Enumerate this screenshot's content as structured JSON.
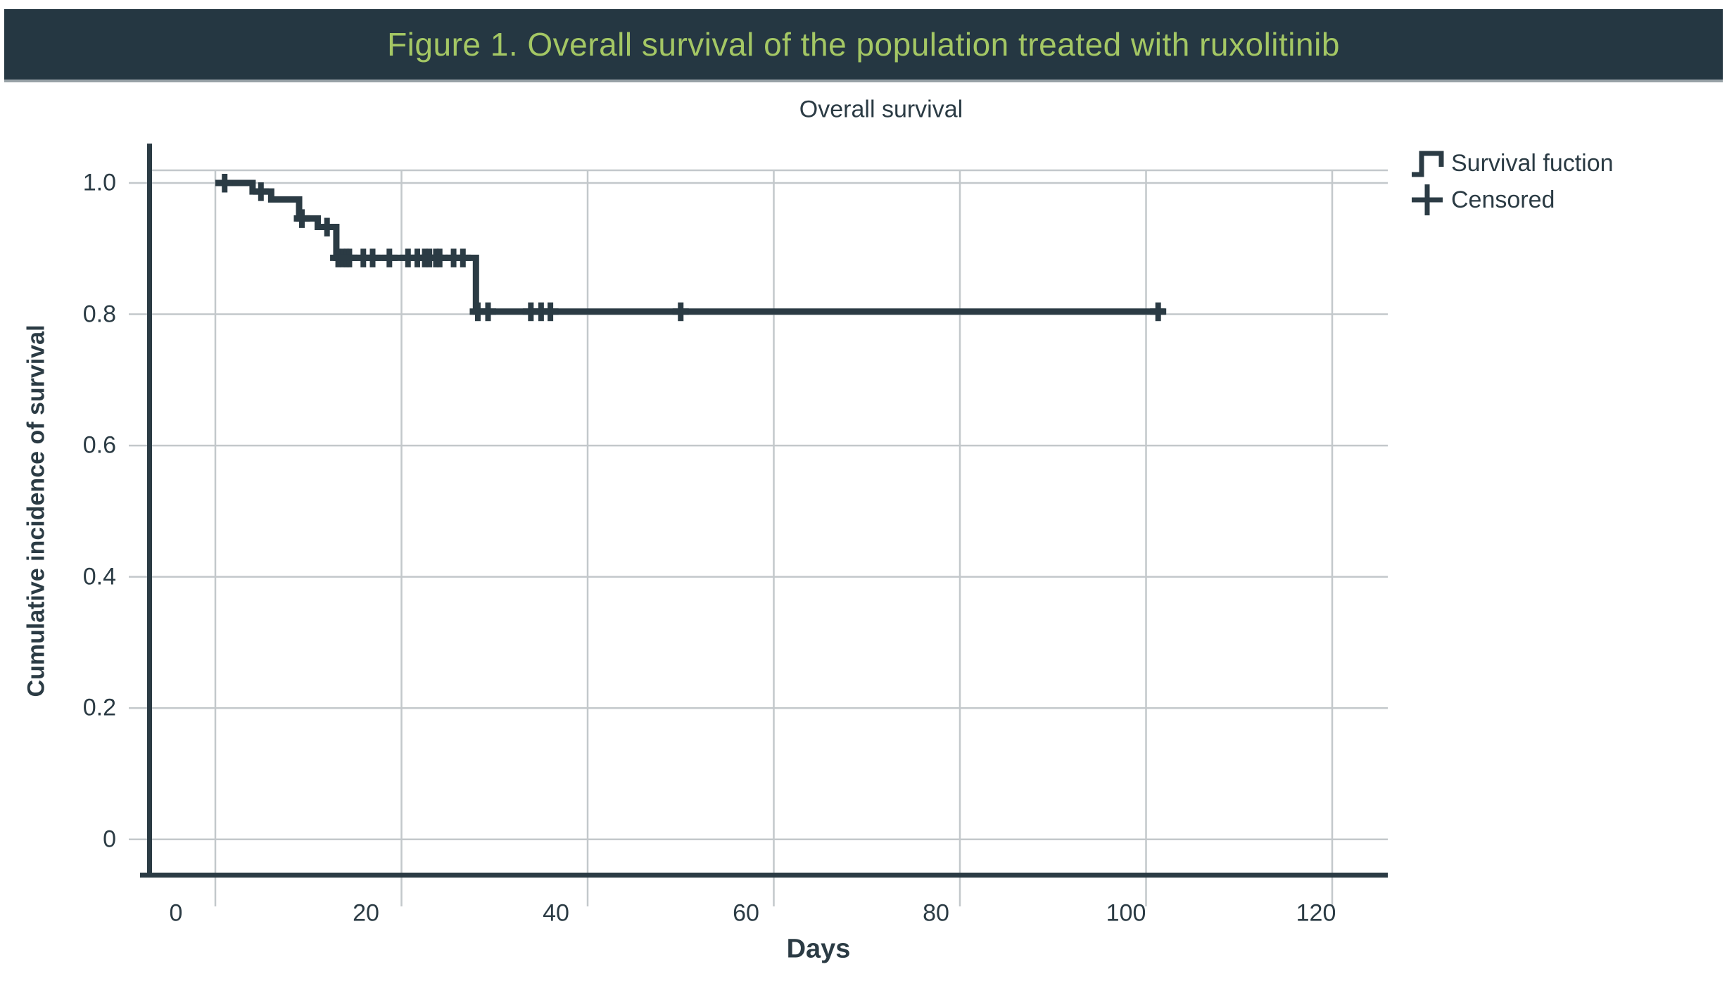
{
  "figure_header": {
    "title": "Figure 1. Overall survival of the population treated with ruxolitinib"
  },
  "chart_data": {
    "type": "line",
    "subtype": "kaplan-meier-step-function",
    "title": "Overall survival",
    "xlabel": "Days",
    "ylabel": "Cumulative incidence of survival",
    "x_ticks": [
      0,
      20,
      40,
      60,
      80,
      100,
      120
    ],
    "y_ticks": [
      {
        "label": "1.0",
        "value": 1.0
      },
      {
        "label": "0.8",
        "value": 0.8
      },
      {
        "label": "0.6",
        "value": 0.6
      },
      {
        "label": "0.4",
        "value": 0.4
      },
      {
        "label": "0.2",
        "value": 0.2
      },
      {
        "label": "0",
        "value": 0.0
      }
    ],
    "xlim": [
      -7,
      126
    ],
    "ylim": [
      -0.054,
      1.019
    ],
    "grid": true,
    "legend_position": "top-right",
    "legend": [
      {
        "label": "Survival fuction",
        "marker": "step-line"
      },
      {
        "label": "Censored",
        "marker": "plus"
      }
    ],
    "series": [
      {
        "name": "Survival fuction",
        "steps": [
          {
            "t": 0,
            "s": 1.0
          },
          {
            "t": 4,
            "s": 0.987
          },
          {
            "t": 6,
            "s": 0.975
          },
          {
            "t": 9,
            "s": 0.946
          },
          {
            "t": 11,
            "s": 0.933
          },
          {
            "t": 13,
            "s": 0.886
          },
          {
            "t": 28,
            "s": 0.804
          }
        ],
        "end_t": 102
      }
    ],
    "censored_points": [
      {
        "t": 1,
        "s": 1.0
      },
      {
        "t": 4.9,
        "s": 0.987
      },
      {
        "t": 9.3,
        "s": 0.946
      },
      {
        "t": 12,
        "s": 0.933
      },
      {
        "t": 13.2,
        "s": 0.886
      },
      {
        "t": 13.7,
        "s": 0.886
      },
      {
        "t": 14.1,
        "s": 0.886
      },
      {
        "t": 14.4,
        "s": 0.886
      },
      {
        "t": 15.9,
        "s": 0.886
      },
      {
        "t": 16.9,
        "s": 0.886
      },
      {
        "t": 18.7,
        "s": 0.886
      },
      {
        "t": 20.7,
        "s": 0.886
      },
      {
        "t": 21.7,
        "s": 0.886
      },
      {
        "t": 22.5,
        "s": 0.886
      },
      {
        "t": 23.0,
        "s": 0.886
      },
      {
        "t": 23.7,
        "s": 0.886
      },
      {
        "t": 24.1,
        "s": 0.886
      },
      {
        "t": 25.6,
        "s": 0.886
      },
      {
        "t": 26.6,
        "s": 0.886
      },
      {
        "t": 28.2,
        "s": 0.804
      },
      {
        "t": 29.3,
        "s": 0.804
      },
      {
        "t": 33.9,
        "s": 0.804
      },
      {
        "t": 35,
        "s": 0.804
      },
      {
        "t": 36,
        "s": 0.804
      },
      {
        "t": 50,
        "s": 0.804
      },
      {
        "t": 101.3,
        "s": 0.804
      }
    ]
  },
  "colors": {
    "ink": "#2b3b44",
    "header_bg": "#253742",
    "header_text": "#a4c764",
    "gridline": "#c3c8cb",
    "background": "#ffffff"
  }
}
